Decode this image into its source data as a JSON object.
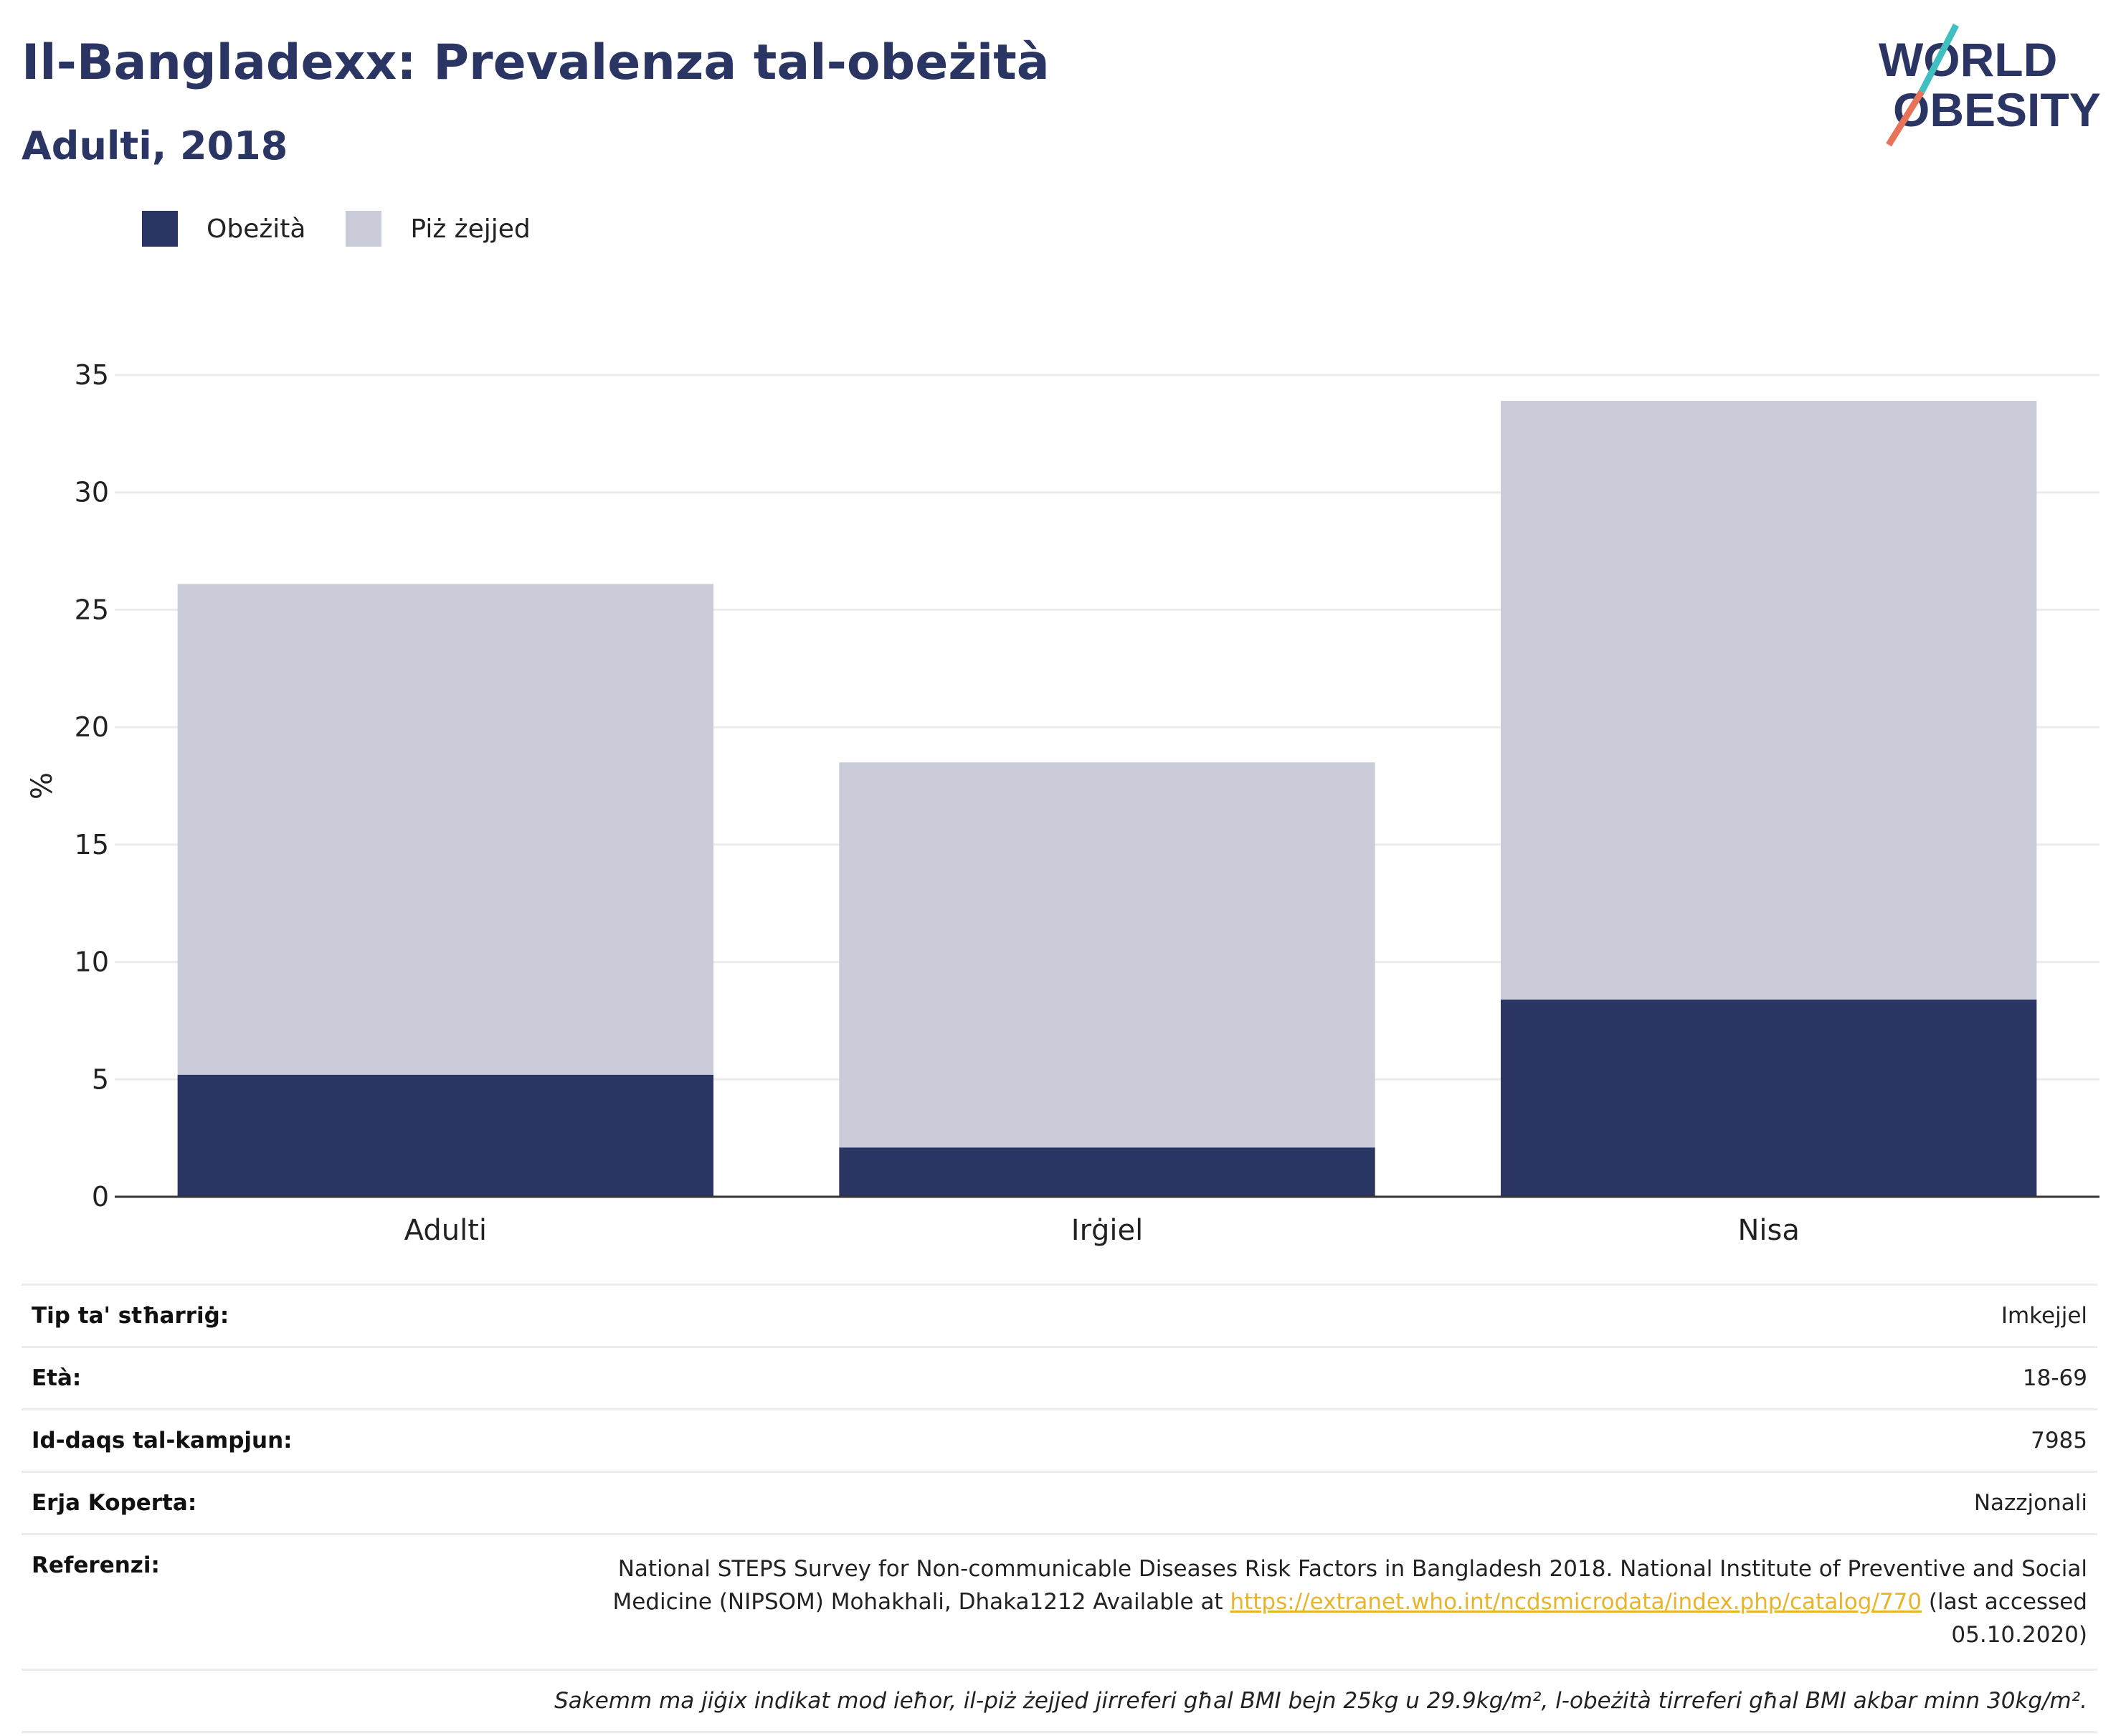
{
  "header": {
    "title": "Il-Bangladexx: Prevalenza tal-obeżità",
    "subtitle": "Adulti, 2018"
  },
  "logo": {
    "line1": "WORLD",
    "line2": "OBESITY",
    "colors": {
      "text": "#2a3563",
      "slash_teal": "#3fbfc0",
      "slash_coral": "#e8735a"
    }
  },
  "legend": [
    {
      "label": "Obeżità",
      "color": "#2a3563"
    },
    {
      "label": "Piż żejjed",
      "color": "#cacdd9"
    }
  ],
  "chart_data": {
    "type": "bar",
    "stacked": true,
    "categories": [
      "Adulti",
      "Irġiel",
      "Nisa"
    ],
    "series": [
      {
        "name": "Obeżità",
        "color": "#2a3563",
        "values": [
          5.2,
          2.1,
          8.4
        ]
      },
      {
        "name": "Piż żejjed",
        "color": "#cacdd9",
        "values": [
          20.9,
          16.4,
          25.5
        ]
      }
    ],
    "totals": [
      26.1,
      18.5,
      33.9
    ],
    "ylabel": "%",
    "ylim": [
      0,
      35
    ],
    "yticks": [
      "0",
      "5",
      "10",
      "15",
      "20",
      "25",
      "30",
      "35"
    ],
    "ytick_values": [
      0,
      5,
      10,
      15,
      20,
      25,
      30,
      35
    ],
    "grid": true
  },
  "info": {
    "rows": [
      {
        "label": "Tip ta' stħarriġ:",
        "value": "Imkejjel"
      },
      {
        "label": "Età:",
        "value": "18-69"
      },
      {
        "label": "Id-daqs tal-kampjun:",
        "value": "7985"
      },
      {
        "label": "Erja Koperta:",
        "value": "Nazzjonali"
      }
    ],
    "reference": {
      "label": "Referenzi:",
      "text_before": "National STEPS Survey for Non-communicable Diseases Risk Factors in Bangladesh 2018. National Institute of Preventive and Social Medicine (NIPSOM) Mohakhali, Dhaka1212 Available at ",
      "link": "https://extranet.who.int/ncdsmicrodata/index.php/catalog/770",
      "text_after": " (last accessed 05.10.2020)"
    },
    "note": "Sakemm ma jiġix indikat mod ieħor, il-piż żejjed jirreferi għal BMI bejn 25kg u 29.9kg/m², l-obeżità tirreferi għal BMI akbar minn 30kg/m²."
  }
}
